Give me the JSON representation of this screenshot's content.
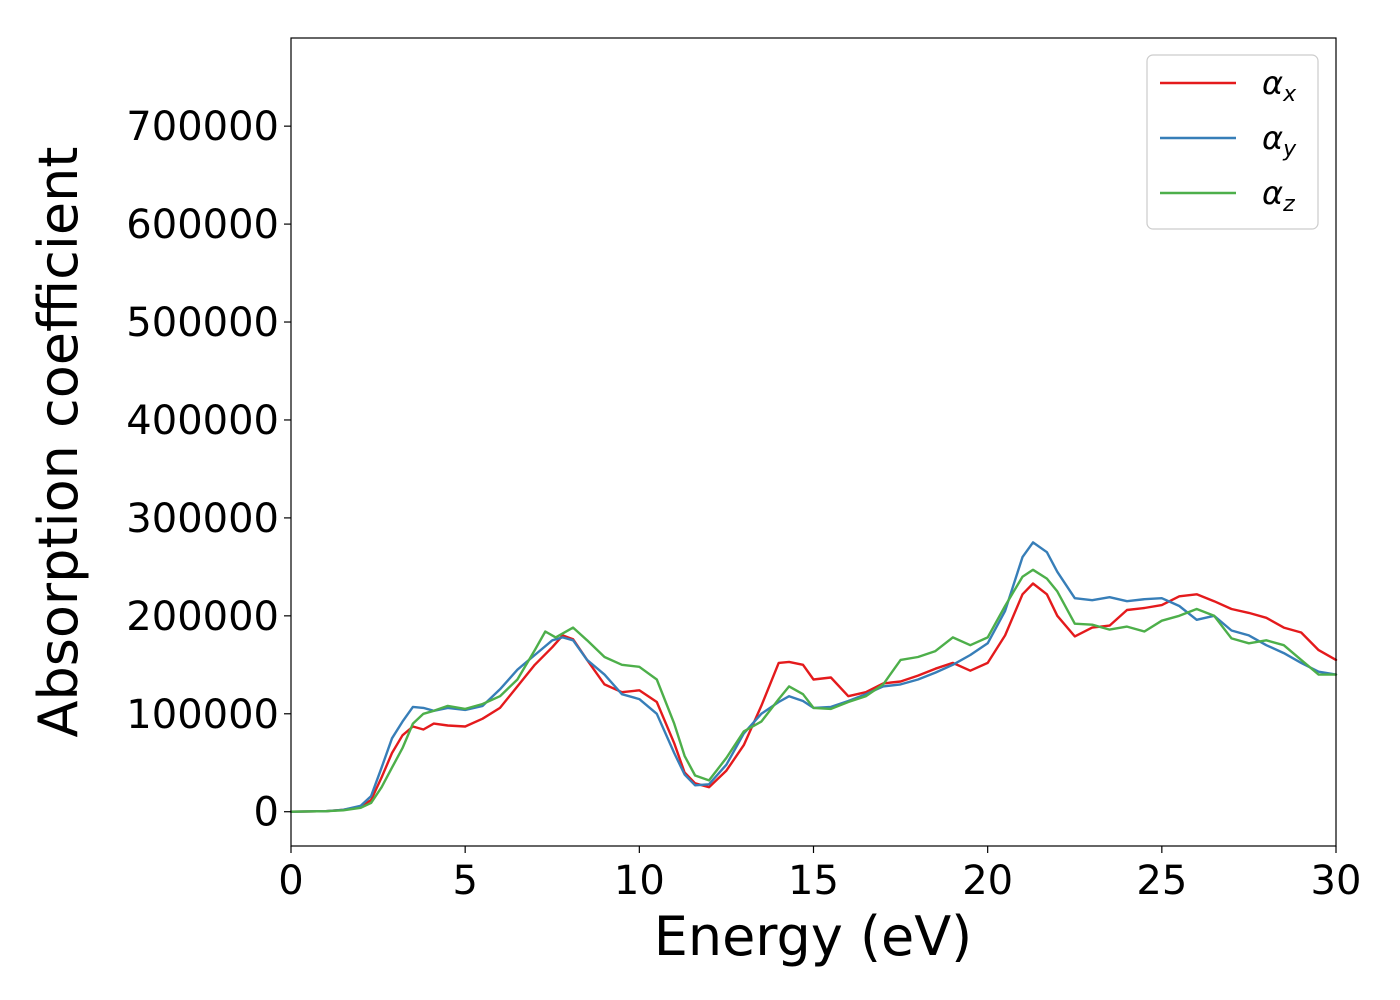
{
  "chart_data": {
    "type": "line",
    "xlabel": "Energy (eV)",
    "ylabel": "Absorption coefficient",
    "xlim": [
      0,
      30
    ],
    "ylim": [
      -35000,
      790000
    ],
    "xticks": [
      0,
      5,
      10,
      15,
      20,
      25,
      30
    ],
    "xtick_labels": [
      "0",
      "5",
      "10",
      "15",
      "20",
      "25",
      "30"
    ],
    "yticks": [
      0,
      100000,
      200000,
      300000,
      400000,
      500000,
      600000,
      700000
    ],
    "ytick_labels": [
      "0",
      "100000",
      "200000",
      "300000",
      "400000",
      "500000",
      "600000",
      "700000"
    ],
    "grid": false,
    "legend_position": "top-right",
    "series": [
      {
        "name": "α_x",
        "label_main": "α",
        "label_sub": "x",
        "color": "#e41a1c",
        "points": [
          [
            0,
            0
          ],
          [
            1,
            500
          ],
          [
            1.5,
            2000
          ],
          [
            2,
            5000
          ],
          [
            2.3,
            12000
          ],
          [
            2.6,
            35000
          ],
          [
            2.9,
            60000
          ],
          [
            3.2,
            78000
          ],
          [
            3.5,
            87000
          ],
          [
            3.8,
            84000
          ],
          [
            4.1,
            90000
          ],
          [
            4.5,
            88000
          ],
          [
            5,
            87000
          ],
          [
            5.5,
            95000
          ],
          [
            6,
            106000
          ],
          [
            6.5,
            128000
          ],
          [
            7,
            150000
          ],
          [
            7.5,
            168000
          ],
          [
            7.8,
            180000
          ],
          [
            8.1,
            176000
          ],
          [
            8.5,
            155000
          ],
          [
            9,
            130000
          ],
          [
            9.5,
            122000
          ],
          [
            10,
            124000
          ],
          [
            10.5,
            112000
          ],
          [
            11,
            70000
          ],
          [
            11.3,
            40000
          ],
          [
            11.6,
            29000
          ],
          [
            12,
            25000
          ],
          [
            12.5,
            42000
          ],
          [
            13,
            68000
          ],
          [
            13.5,
            108000
          ],
          [
            14,
            152000
          ],
          [
            14.3,
            153000
          ],
          [
            14.7,
            150000
          ],
          [
            15,
            135000
          ],
          [
            15.5,
            137000
          ],
          [
            16,
            118000
          ],
          [
            16.5,
            122000
          ],
          [
            17,
            131000
          ],
          [
            17.5,
            133000
          ],
          [
            18,
            139000
          ],
          [
            18.5,
            146000
          ],
          [
            19,
            152000
          ],
          [
            19.5,
            144000
          ],
          [
            20,
            152000
          ],
          [
            20.5,
            180000
          ],
          [
            21,
            222000
          ],
          [
            21.3,
            233000
          ],
          [
            21.7,
            222000
          ],
          [
            22,
            200000
          ],
          [
            22.5,
            179000
          ],
          [
            23,
            188000
          ],
          [
            23.5,
            190000
          ],
          [
            24,
            206000
          ],
          [
            24.5,
            208000
          ],
          [
            25,
            211000
          ],
          [
            25.5,
            220000
          ],
          [
            26,
            222000
          ],
          [
            26.5,
            215000
          ],
          [
            27,
            207000
          ],
          [
            27.5,
            203000
          ],
          [
            28,
            198000
          ],
          [
            28.5,
            188000
          ],
          [
            29,
            183000
          ],
          [
            29.5,
            165000
          ],
          [
            30,
            155000
          ]
        ]
      },
      {
        "name": "α_y",
        "label_main": "α",
        "label_sub": "y",
        "color": "#377eb8",
        "points": [
          [
            0,
            0
          ],
          [
            1,
            500
          ],
          [
            1.5,
            2000
          ],
          [
            2,
            6000
          ],
          [
            2.3,
            16000
          ],
          [
            2.6,
            45000
          ],
          [
            2.9,
            75000
          ],
          [
            3.2,
            92000
          ],
          [
            3.5,
            107000
          ],
          [
            3.8,
            106000
          ],
          [
            4.1,
            103000
          ],
          [
            4.5,
            106000
          ],
          [
            5,
            104000
          ],
          [
            5.5,
            108000
          ],
          [
            6,
            125000
          ],
          [
            6.5,
            145000
          ],
          [
            7,
            160000
          ],
          [
            7.5,
            175000
          ],
          [
            7.8,
            178000
          ],
          [
            8.1,
            175000
          ],
          [
            8.5,
            155000
          ],
          [
            9,
            140000
          ],
          [
            9.5,
            120000
          ],
          [
            10,
            115000
          ],
          [
            10.5,
            100000
          ],
          [
            11,
            60000
          ],
          [
            11.3,
            38000
          ],
          [
            11.6,
            27000
          ],
          [
            12,
            28000
          ],
          [
            12.5,
            48000
          ],
          [
            13,
            80000
          ],
          [
            13.5,
            100000
          ],
          [
            14,
            112000
          ],
          [
            14.3,
            118000
          ],
          [
            14.7,
            113000
          ],
          [
            15,
            106000
          ],
          [
            15.5,
            107000
          ],
          [
            16,
            113000
          ],
          [
            16.5,
            120000
          ],
          [
            17,
            128000
          ],
          [
            17.5,
            130000
          ],
          [
            18,
            135000
          ],
          [
            18.5,
            142000
          ],
          [
            19,
            150000
          ],
          [
            19.5,
            160000
          ],
          [
            20,
            172000
          ],
          [
            20.5,
            205000
          ],
          [
            21,
            260000
          ],
          [
            21.3,
            275000
          ],
          [
            21.7,
            265000
          ],
          [
            22,
            245000
          ],
          [
            22.5,
            218000
          ],
          [
            23,
            216000
          ],
          [
            23.5,
            219000
          ],
          [
            24,
            215000
          ],
          [
            24.5,
            217000
          ],
          [
            25,
            218000
          ],
          [
            25.5,
            210000
          ],
          [
            26,
            196000
          ],
          [
            26.5,
            200000
          ],
          [
            27,
            185000
          ],
          [
            27.5,
            180000
          ],
          [
            28,
            170000
          ],
          [
            28.5,
            162000
          ],
          [
            29,
            152000
          ],
          [
            29.5,
            143000
          ],
          [
            30,
            140000
          ]
        ]
      },
      {
        "name": "α_z",
        "label_main": "α",
        "label_sub": "z",
        "color": "#4daf4a",
        "points": [
          [
            0,
            0
          ],
          [
            1,
            500
          ],
          [
            1.5,
            1500
          ],
          [
            2,
            4000
          ],
          [
            2.3,
            9000
          ],
          [
            2.6,
            25000
          ],
          [
            2.9,
            45000
          ],
          [
            3.2,
            65000
          ],
          [
            3.5,
            90000
          ],
          [
            3.8,
            100000
          ],
          [
            4.1,
            103000
          ],
          [
            4.5,
            108000
          ],
          [
            5,
            105000
          ],
          [
            5.5,
            110000
          ],
          [
            6,
            118000
          ],
          [
            6.5,
            135000
          ],
          [
            7,
            165000
          ],
          [
            7.3,
            184000
          ],
          [
            7.6,
            178000
          ],
          [
            8.1,
            188000
          ],
          [
            8.5,
            175000
          ],
          [
            9,
            158000
          ],
          [
            9.5,
            150000
          ],
          [
            10,
            148000
          ],
          [
            10.5,
            135000
          ],
          [
            11,
            90000
          ],
          [
            11.3,
            57000
          ],
          [
            11.6,
            37000
          ],
          [
            12,
            32000
          ],
          [
            12.5,
            55000
          ],
          [
            13,
            82000
          ],
          [
            13.5,
            92000
          ],
          [
            14,
            115000
          ],
          [
            14.3,
            128000
          ],
          [
            14.7,
            120000
          ],
          [
            15,
            106000
          ],
          [
            15.5,
            105000
          ],
          [
            16,
            112000
          ],
          [
            16.5,
            118000
          ],
          [
            17,
            130000
          ],
          [
            17.5,
            155000
          ],
          [
            18,
            158000
          ],
          [
            18.5,
            164000
          ],
          [
            19,
            178000
          ],
          [
            19.5,
            170000
          ],
          [
            20,
            178000
          ],
          [
            20.5,
            210000
          ],
          [
            21,
            240000
          ],
          [
            21.3,
            247000
          ],
          [
            21.7,
            238000
          ],
          [
            22,
            225000
          ],
          [
            22.5,
            192000
          ],
          [
            23,
            191000
          ],
          [
            23.5,
            186000
          ],
          [
            24,
            189000
          ],
          [
            24.5,
            184000
          ],
          [
            25,
            195000
          ],
          [
            25.5,
            200000
          ],
          [
            26,
            207000
          ],
          [
            26.5,
            200000
          ],
          [
            27,
            177000
          ],
          [
            27.5,
            172000
          ],
          [
            28,
            175000
          ],
          [
            28.5,
            170000
          ],
          [
            29,
            155000
          ],
          [
            29.5,
            140000
          ],
          [
            30,
            140000
          ]
        ]
      }
    ]
  }
}
